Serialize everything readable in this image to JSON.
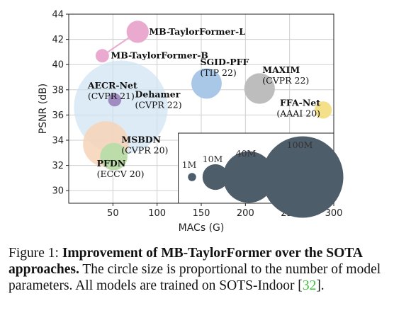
{
  "chart_data": {
    "type": "scatter",
    "xlabel": "MACs (G)",
    "ylabel": "PSNR (dB)",
    "xlim": [
      0,
      300
    ],
    "ylim": [
      29,
      44
    ],
    "xticks": [
      50,
      100,
      150,
      200,
      250,
      300
    ],
    "yticks": [
      30,
      32,
      34,
      36,
      38,
      40,
      42,
      44
    ],
    "grid": true,
    "size_meaning": "number of model parameters",
    "points": [
      {
        "name": "MB-TaylorFormer-L",
        "venue": "",
        "x": 78,
        "y": 42.6,
        "params_m": 7.4,
        "color": "#eaa9cf",
        "alpha": 1
      },
      {
        "name": "MB-TaylorFormer-B",
        "venue": "",
        "x": 38,
        "y": 40.7,
        "params_m": 2.7,
        "color": "#eaa9cf",
        "alpha": 1
      },
      {
        "name": "AECR-Net",
        "venue": "(CVPR 21)",
        "x": 52,
        "y": 37.2,
        "params_m": 2.6,
        "color": "#a08cc0",
        "alpha": 1
      },
      {
        "name": "Dehamer",
        "venue": "(CVPR 22)",
        "x": 59,
        "y": 36.6,
        "params_m": 132.5,
        "color": "#cde3f1",
        "alpha": 0.7
      },
      {
        "name": "MSBDN",
        "venue": "(CVPR 20)",
        "x": 42,
        "y": 33.7,
        "params_m": 31.4,
        "color": "#f7d4b7",
        "alpha": 0.85
      },
      {
        "name": "PFDN",
        "venue": "(ECCV 20)",
        "x": 51,
        "y": 32.7,
        "params_m": 11.3,
        "color": "#bcdcaa",
        "alpha": 1
      },
      {
        "name": "SGID-PFF",
        "venue": "(TIP 22)",
        "x": 156,
        "y": 38.5,
        "params_m": 13.9,
        "color": "#a9c8e8",
        "alpha": 1
      },
      {
        "name": "MAXIM",
        "venue": "(CVPR 22)",
        "x": 216,
        "y": 38.1,
        "params_m": 14.1,
        "color": "#bdbdbd",
        "alpha": 1
      },
      {
        "name": "FFA-Net",
        "venue": "(AAAI 20)",
        "x": 288,
        "y": 36.4,
        "params_m": 4.5,
        "color": "#f5e08a",
        "alpha": 1
      }
    ],
    "connector": [
      "MB-TaylorFormer-B",
      "MB-TaylorFormer-L"
    ],
    "size_legend": {
      "color": "#4e5d6a",
      "entries": [
        {
          "label": "1M",
          "params_m": 1
        },
        {
          "label": "10M",
          "params_m": 10
        },
        {
          "label": "40M",
          "params_m": 40
        },
        {
          "label": "100M",
          "params_m": 100
        }
      ]
    }
  },
  "caption": {
    "prefix": "Figure 1: ",
    "bold": "Improvement of MB-TaylorFormer over the SOTA approaches.",
    "rest": " The circle size is proportional to the number of model parameters.  All models are trained on SOTS-Indoor [",
    "ref": "32",
    "suffix": "]."
  }
}
